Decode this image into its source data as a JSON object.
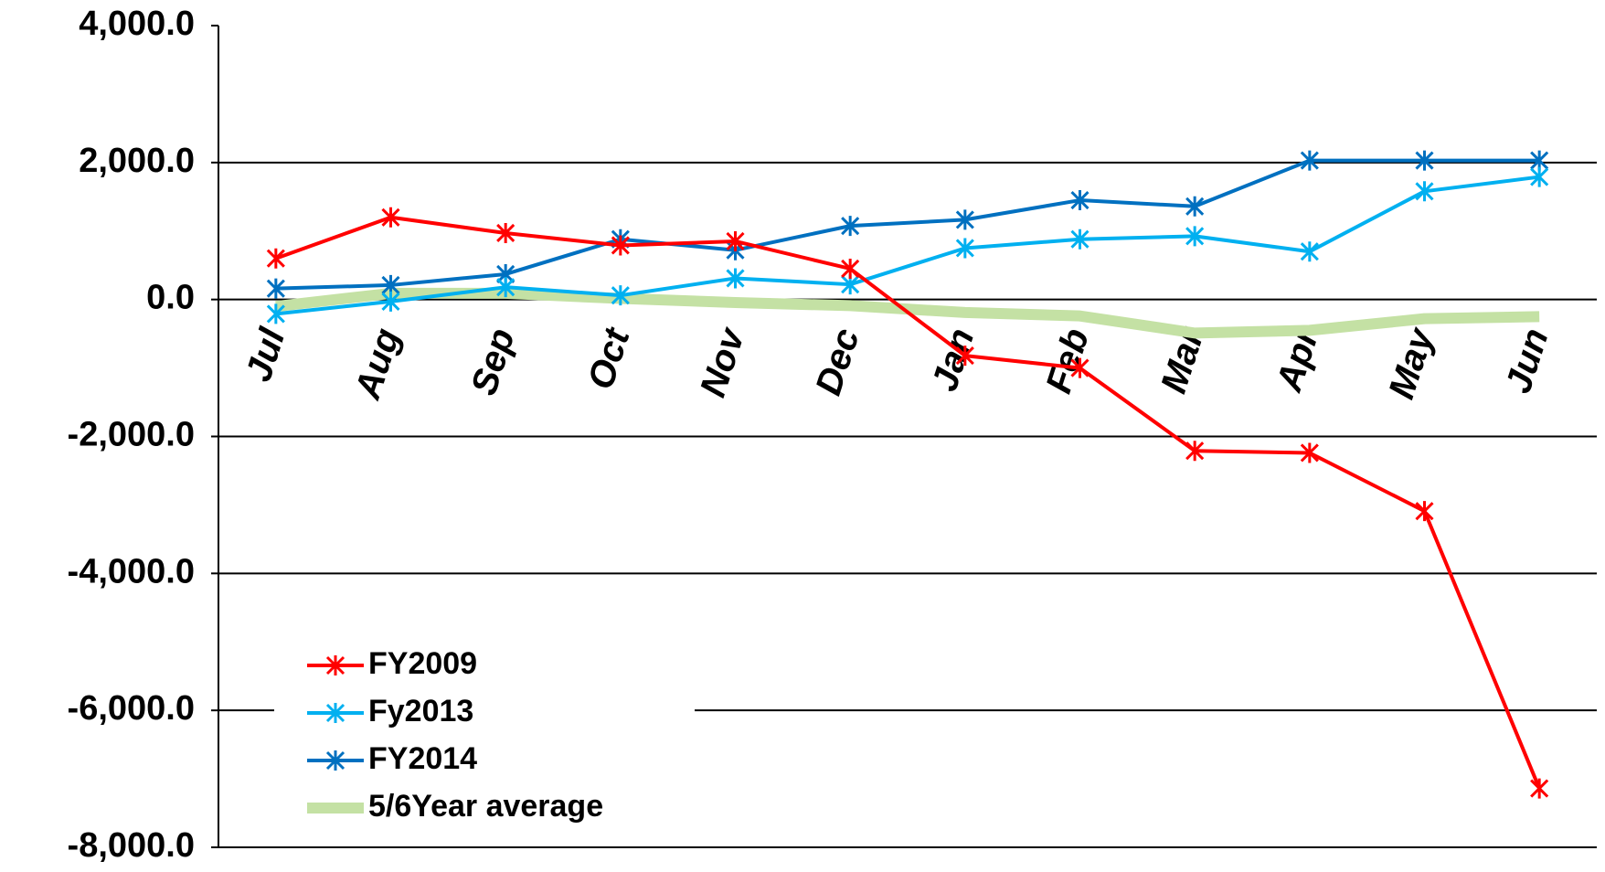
{
  "chart_data": {
    "type": "line",
    "categories": [
      "Jul",
      "Aug",
      "Sep",
      "Oct",
      "Nov",
      "Dec",
      "Jan",
      "Feb",
      "Mar",
      "Apr",
      "May",
      "Jun"
    ],
    "series": [
      {
        "name": "FY2009",
        "color": "#ff0000",
        "marker": true,
        "values": [
          600,
          1200,
          970,
          790,
          850,
          450,
          -820,
          -1000,
          -2210,
          -2240,
          -3090,
          -7140
        ]
      },
      {
        "name": "Fy2013",
        "color": "#00b0f0",
        "marker": true,
        "values": [
          -210,
          -30,
          180,
          60,
          310,
          220,
          750,
          880,
          925,
          700,
          1580,
          1790
        ]
      },
      {
        "name": "FY2014",
        "color": "#0070c0",
        "marker": true,
        "values": [
          160,
          210,
          370,
          880,
          720,
          1075,
          1165,
          1450,
          1360,
          2030,
          2030,
          2030
        ]
      },
      {
        "name": "5/6Year average",
        "color": "#c4e1a4",
        "marker": false,
        "values": [
          -100,
          90,
          90,
          15,
          -45,
          -90,
          -190,
          -240,
          -490,
          -450,
          -280,
          -250
        ]
      }
    ],
    "ylim": [
      -8000,
      4000
    ],
    "yticks": [
      {
        "value": 4000,
        "label": "4,000.0"
      },
      {
        "value": 2000,
        "label": "2,000.0"
      },
      {
        "value": 0,
        "label": "0.0"
      },
      {
        "value": -2000,
        "label": "-2,000.0"
      },
      {
        "value": -4000,
        "label": "-4,000.0"
      },
      {
        "value": -6000,
        "label": "-6,000.0"
      },
      {
        "value": -8000,
        "label": "-8,000.0"
      }
    ],
    "grid": true,
    "legend": "lower-left"
  }
}
